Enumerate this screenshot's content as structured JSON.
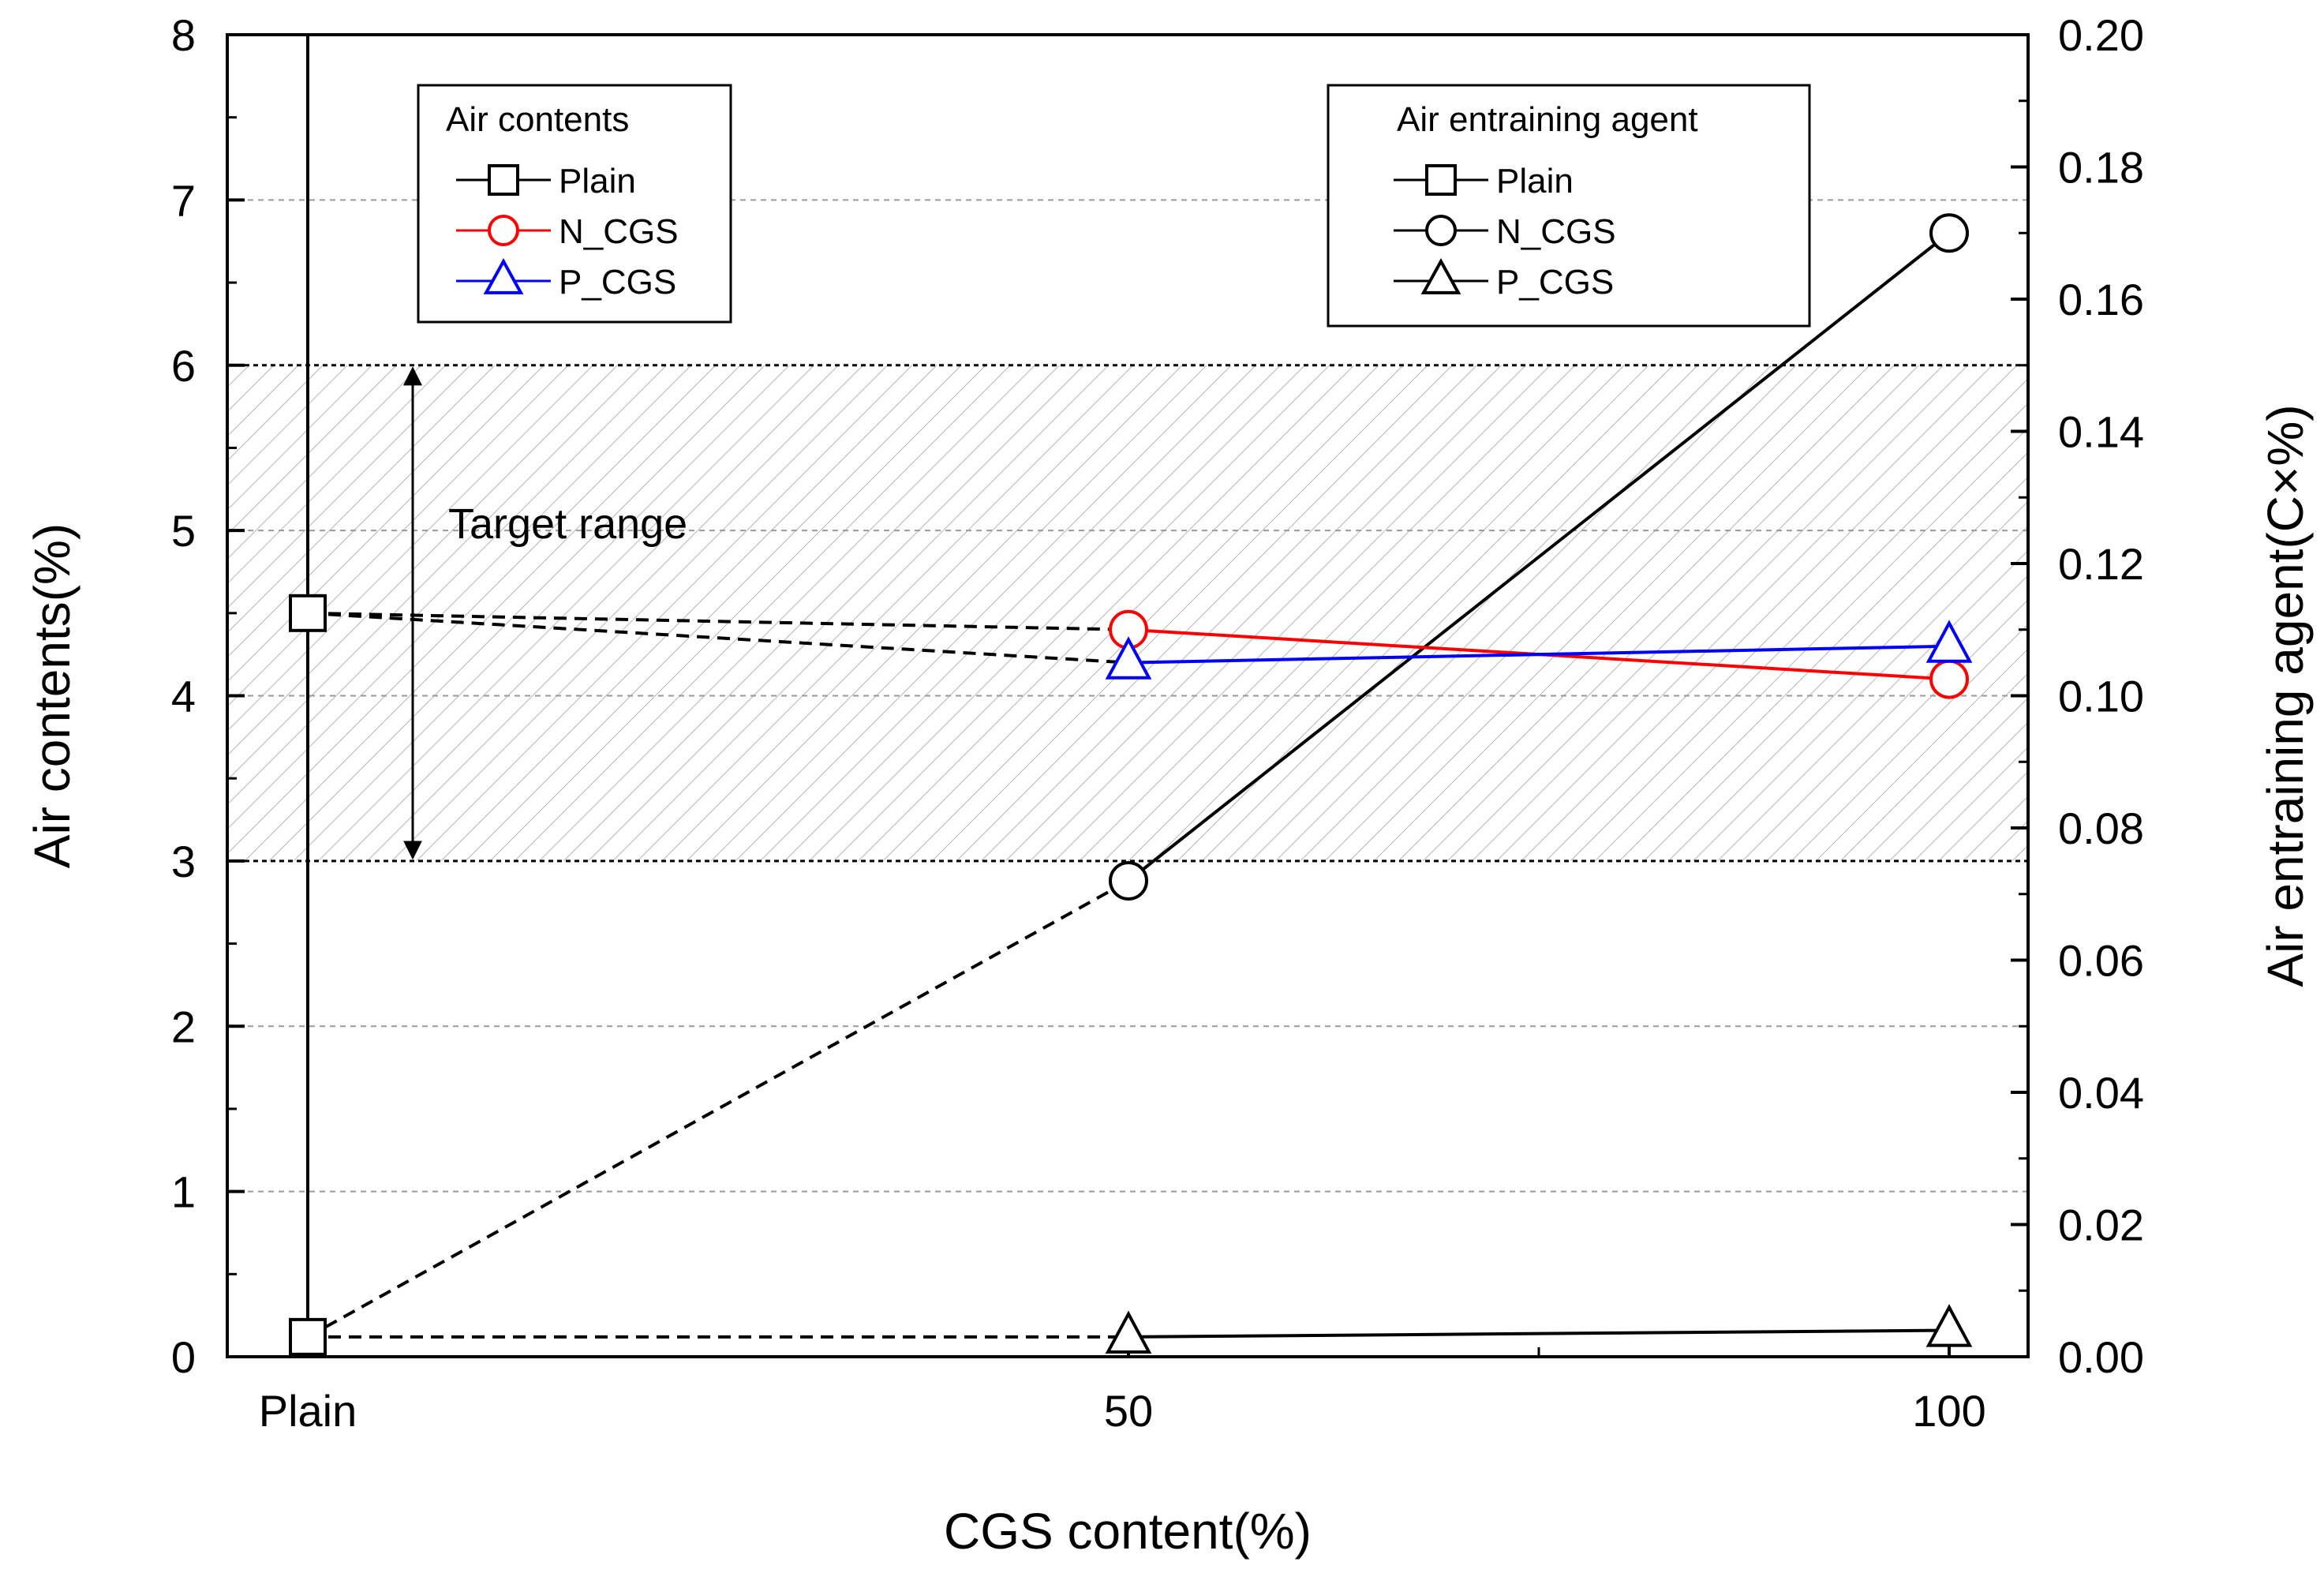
{
  "chart_data": {
    "type": "line",
    "xlabel": "CGS content(%)",
    "ylabel": "Air contents(%)",
    "y2label": "Air entraining agent(C×%)",
    "categories": [
      "Plain",
      "50",
      "100"
    ],
    "ylim": [
      0,
      8
    ],
    "y2lim": [
      0,
      0.2
    ],
    "y_ticks": [
      "0",
      "1",
      "2",
      "3",
      "4",
      "5",
      "6",
      "7",
      "8"
    ],
    "y2_ticks": [
      "0.00",
      "0.02",
      "0.04",
      "0.06",
      "0.08",
      "0.10",
      "0.12",
      "0.14",
      "0.16",
      "0.18",
      "0.20"
    ],
    "grid": "horizontal dashed",
    "target_range": {
      "label": "Target range",
      "low": 3,
      "high": 6
    },
    "air_contents": {
      "legend_title": "Air contents",
      "series": [
        {
          "name": "Plain",
          "marker": "square",
          "color": "#000000",
          "values": [
            4.5,
            null,
            null
          ]
        },
        {
          "name": "N_CGS",
          "marker": "circle",
          "color": "#ff0000",
          "values": [
            null,
            4.4,
            4.1
          ]
        },
        {
          "name": "P_CGS",
          "marker": "triangle",
          "color": "#0000ff",
          "values": [
            null,
            4.2,
            4.3
          ]
        }
      ]
    },
    "air_entraining_agent": {
      "legend_title": "Air entraining agent",
      "series": [
        {
          "name": "Plain",
          "marker": "square",
          "color": "#000000",
          "values": [
            0.003,
            null,
            null
          ]
        },
        {
          "name": "N_CGS",
          "marker": "circle",
          "color": "#000000",
          "values": [
            null,
            0.072,
            0.17
          ]
        },
        {
          "name": "P_CGS",
          "marker": "triangle",
          "color": "#000000",
          "values": [
            null,
            0.003,
            0.004
          ]
        }
      ]
    }
  }
}
